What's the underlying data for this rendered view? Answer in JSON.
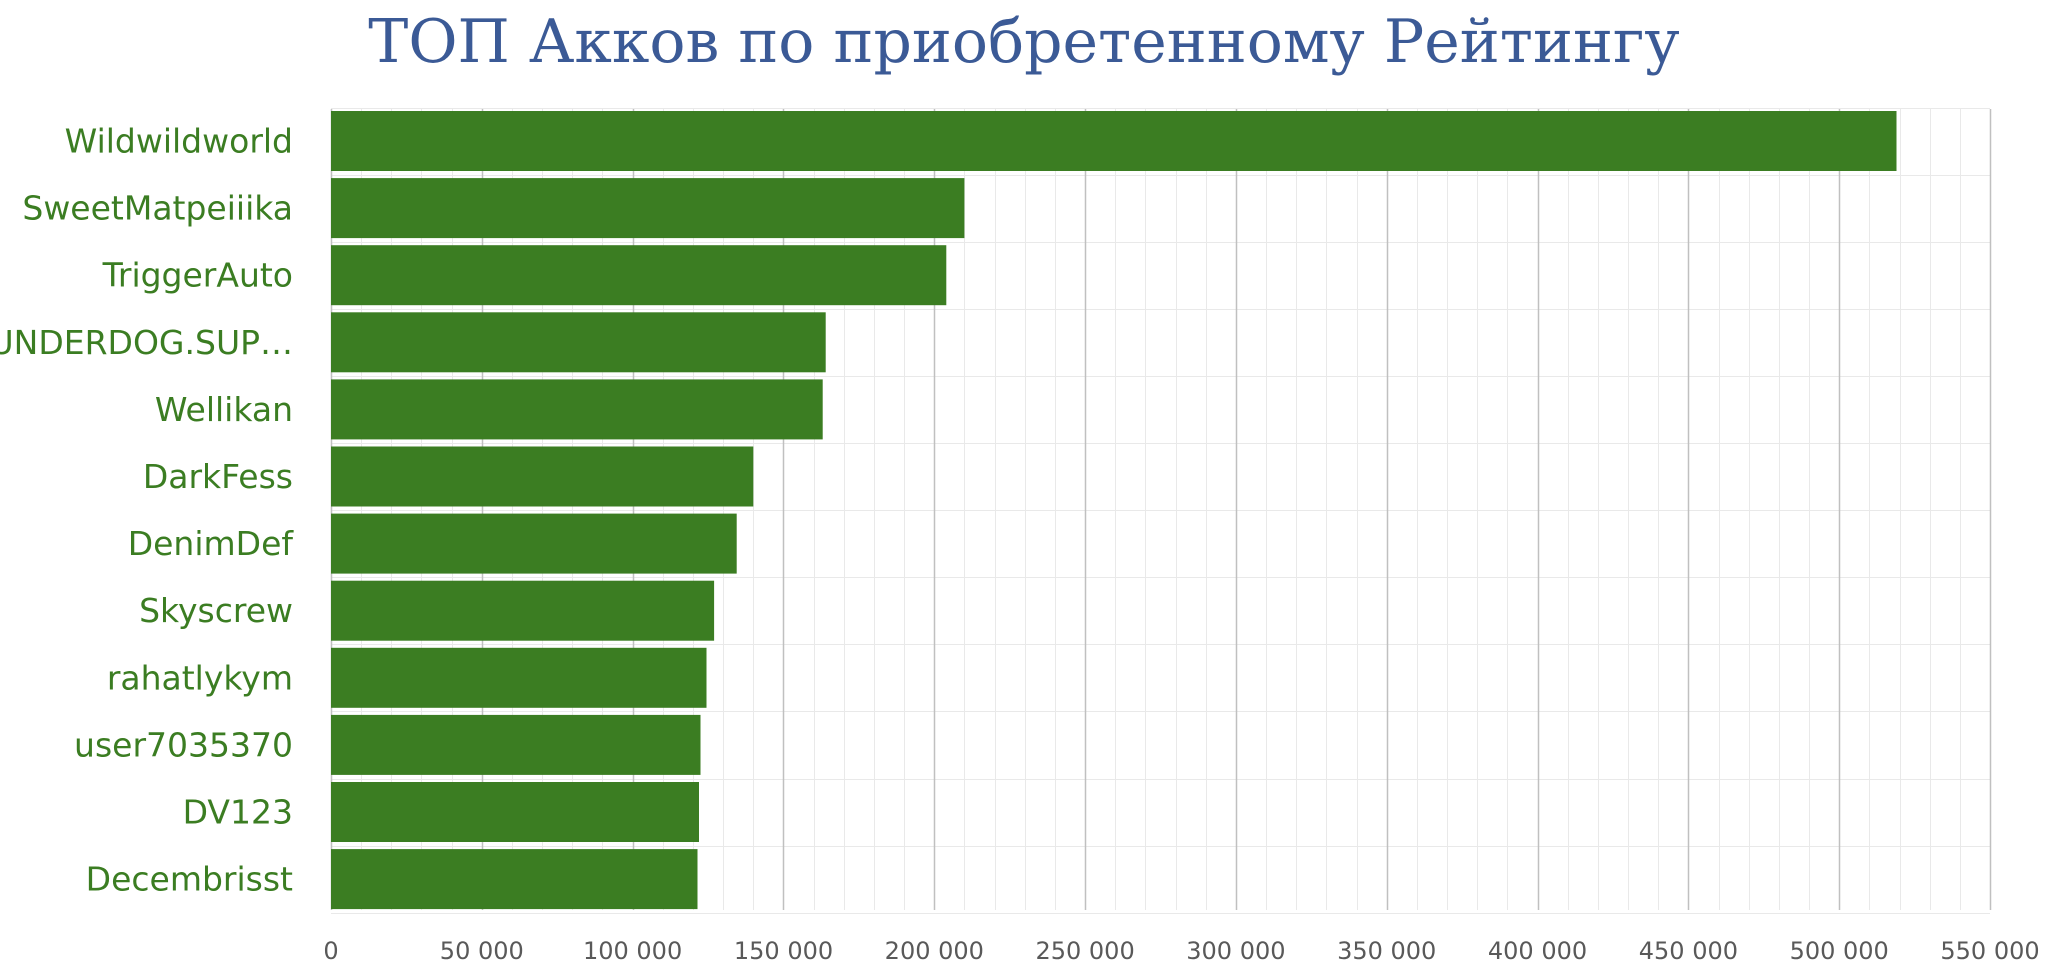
{
  "colors": {
    "title": "#3b5a96",
    "bar": "#3b7d22",
    "category_label": "#3b7d22",
    "tick_label": "#595959",
    "major_grid": "#c0c0c0",
    "minor_grid": "#e9e9e9"
  },
  "chart_data": {
    "type": "bar",
    "orientation": "horizontal",
    "title": "ТОП Акков по приобретенному Рейтингу",
    "xlabel": "",
    "ylabel": "",
    "xlim": [
      0,
      550000
    ],
    "x_major_step": 50000,
    "x_minor_step": 10000,
    "x_tick_labels": [
      "0",
      "50 000",
      "100 000",
      "150 000",
      "200 000",
      "250 000",
      "300 000",
      "350 000",
      "400 000",
      "450 000",
      "500 000",
      "550 000"
    ],
    "grid": true,
    "legend": false,
    "categories": [
      "Wildwildworld",
      "SweetMatpeiiika",
      "TriggerAuto",
      "UNDERDOG.SUP…",
      "Wellikan",
      "DarkFess",
      "DenimDef",
      "Skyscrew",
      "rahatlykym",
      "user7035370",
      "DV123",
      "Decembrisst"
    ],
    "values": [
      519000,
      210000,
      204000,
      164000,
      163000,
      140000,
      134500,
      127000,
      124500,
      122500,
      122000,
      121500
    ]
  }
}
